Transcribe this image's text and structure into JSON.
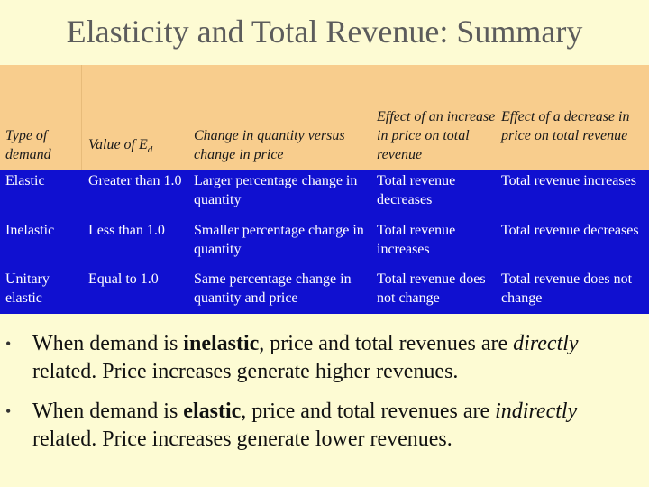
{
  "title": "Elasticity and Total Revenue: Summary",
  "table": {
    "header": {
      "type": "Type of demand",
      "value": "Value of E",
      "value_sub": "d",
      "change": "Change in quantity versus change in price",
      "increase": "Effect of an increase in price on total revenue",
      "decrease": "Effect of a decrease in price on total revenue"
    },
    "rows": [
      {
        "type": "Elastic",
        "value": "Greater than 1.0",
        "change": "Larger percentage change in quantity",
        "increase": "Total revenue decreases",
        "decrease": "Total revenue increases"
      },
      {
        "type": "Inelastic",
        "value": "Less than 1.0",
        "change": "Smaller percentage change in quantity",
        "increase": "Total revenue increases",
        "decrease": "Total revenue decreases"
      },
      {
        "type": "Unitary elastic",
        "value": "Equal to 1.0",
        "change": "Same percentage change in quantity and price",
        "increase": "Total revenue does not change",
        "decrease": "Total revenue does not change"
      }
    ]
  },
  "bullets": [
    {
      "p1": "When demand is ",
      "bold": "inelastic",
      "p2": ", price and total revenues are ",
      "italic": "directly",
      "p3": " related.   Price increases generate higher revenues."
    },
    {
      "p1": "When demand is ",
      "bold": "elastic",
      "p2": ", price and total revenues are ",
      "italic": "indirectly",
      "p3": " related.  Price increases generate lower revenues."
    }
  ],
  "colors": {
    "background": "#fdfbd3",
    "header_bg": "#f8cd8d",
    "body_bg": "#1010d0",
    "title_text": "#5c5c5c"
  }
}
